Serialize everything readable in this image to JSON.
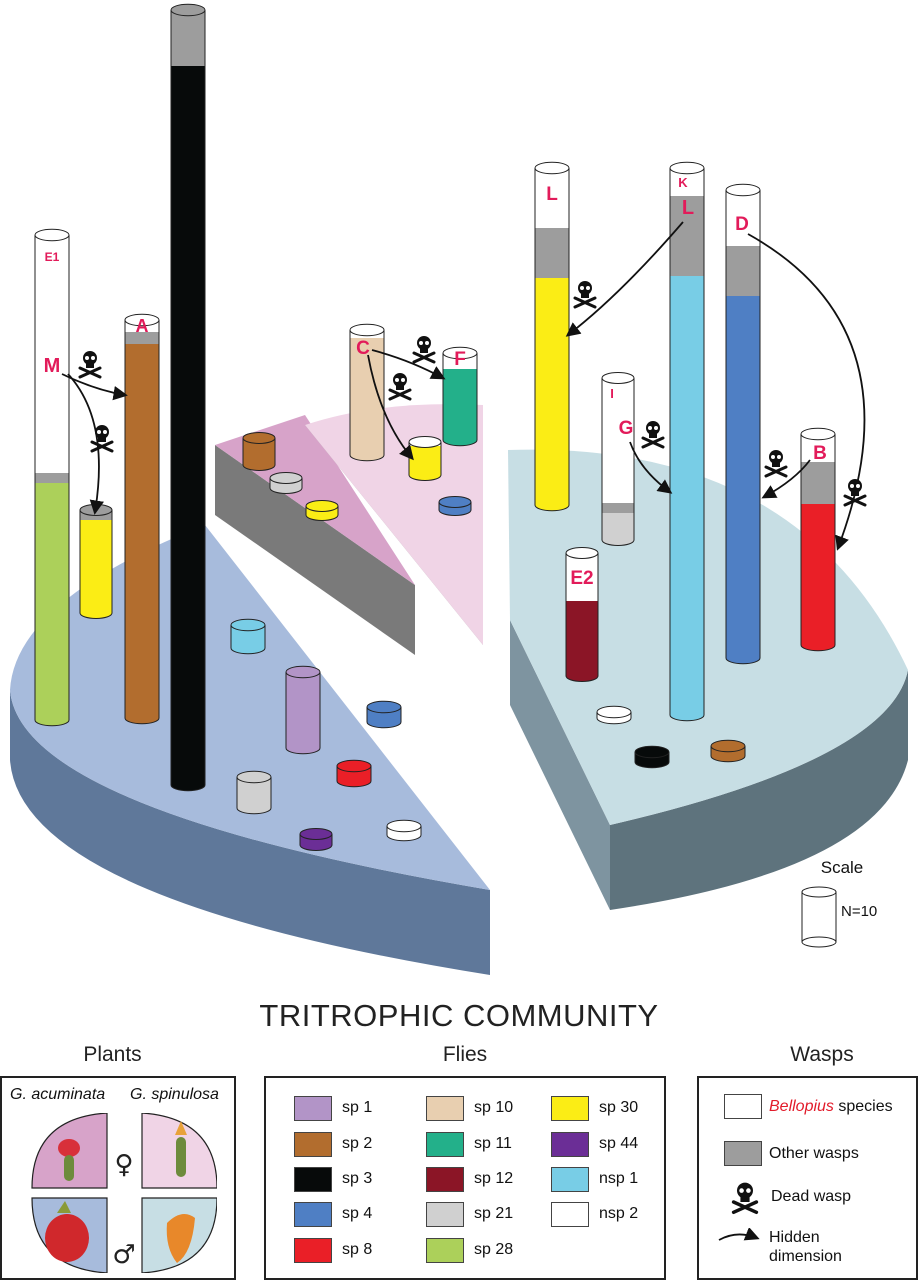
{
  "title": "TRITROPHIC COMMUNITY",
  "scale": {
    "label": "Scale",
    "n_label": "N=10"
  },
  "column_letters": [
    "E1",
    "M",
    "A",
    "C",
    "F",
    "L",
    "K",
    "L",
    "D",
    "I",
    "G",
    "B",
    "E2"
  ],
  "legend": {
    "plants": {
      "heading": "Plants",
      "species_left": "G. acuminata",
      "species_right": "G. spinulosa",
      "female_symbol": "♀",
      "male_symbol": "♂"
    },
    "flies": {
      "heading": "Flies",
      "items": [
        {
          "label": "sp 1",
          "color": "#b294c7"
        },
        {
          "label": "sp 2",
          "color": "#b26d2e"
        },
        {
          "label": "sp 3",
          "color": "#070a0a"
        },
        {
          "label": "sp 4",
          "color": "#4f7fc4"
        },
        {
          "label": "sp 8",
          "color": "#ea1f27"
        },
        {
          "label": "sp 10",
          "color": "#e8cfb0"
        },
        {
          "label": "sp 11",
          "color": "#23b08a"
        },
        {
          "label": "sp 12",
          "color": "#8b1526"
        },
        {
          "label": "sp 21",
          "color": "#d0d0d0"
        },
        {
          "label": "sp 28",
          "color": "#acd05a"
        },
        {
          "label": "sp 30",
          "color": "#fbed15"
        },
        {
          "label": "sp 44",
          "color": "#6b2e96"
        },
        {
          "label": "nsp 1",
          "color": "#78cde6"
        },
        {
          "label": "nsp 2",
          "color": "#ffffff"
        }
      ]
    },
    "wasps": {
      "heading": "Wasps",
      "bellopius_label": "Bellopius",
      "bellopius_suffix": " species",
      "other_label": "Other wasps",
      "dead_label": "Dead wasp",
      "hidden_label_1": "Hidden",
      "hidden_label_2": "dimension"
    }
  },
  "colors": {
    "wedge_blue": "#a7bbdc",
    "wedge_blue_side": "#5f789a",
    "wedge_lightblue": "#c7dee4",
    "wedge_lightblue_side": "#5e737d",
    "wedge_pink": "#f0d4e6",
    "wedge_darkpink": "#d7a3c9",
    "wedge_gray_side": "#8e8e8e",
    "label_red": "#e21b5a"
  }
}
